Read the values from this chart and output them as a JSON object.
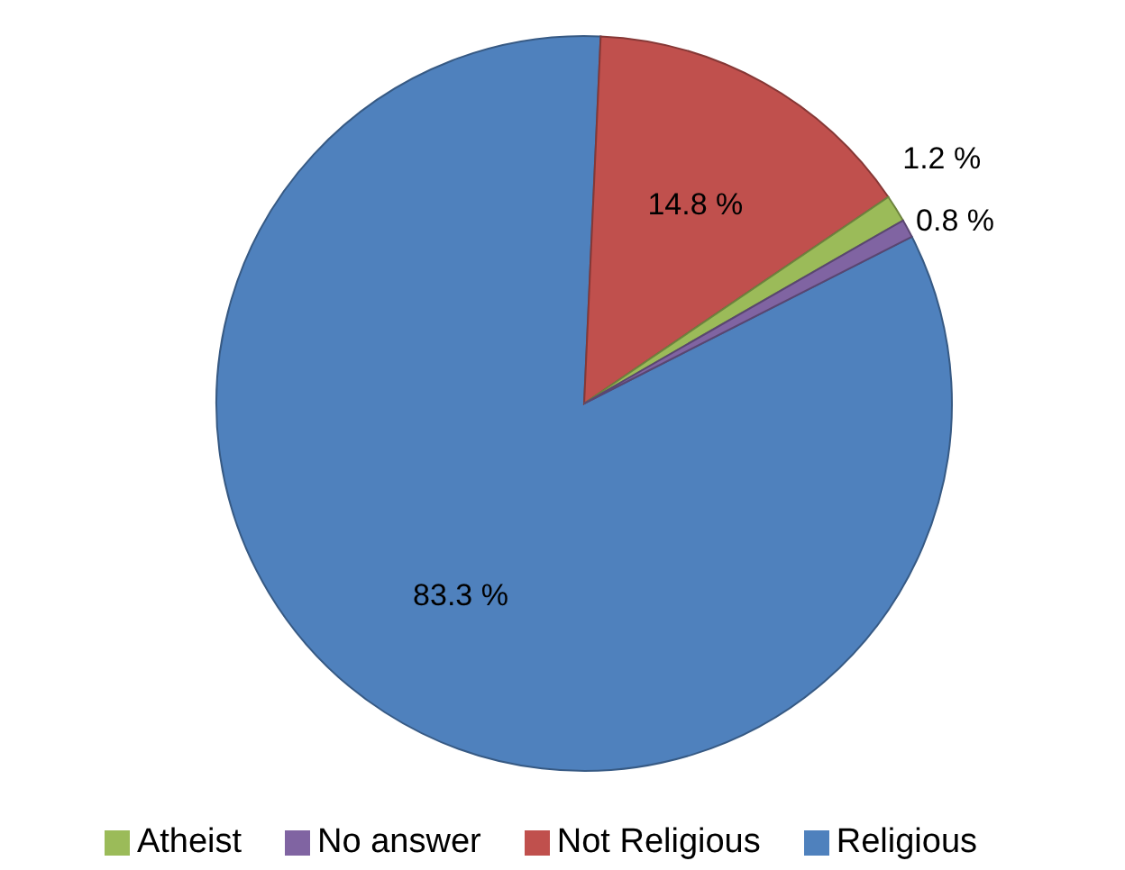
{
  "chart_data": {
    "type": "pie",
    "categories": [
      "Religious",
      "Not Religious",
      "Atheist",
      "No answer"
    ],
    "values": [
      83.3,
      14.8,
      1.2,
      0.8
    ],
    "value_labels": [
      "83.3 %",
      "14.8 %",
      "1.2 %",
      "0.8 %"
    ],
    "colors": [
      "#4f81bd",
      "#c0504d",
      "#9bbb59",
      "#8064a2"
    ],
    "legend": "bottom"
  }
}
